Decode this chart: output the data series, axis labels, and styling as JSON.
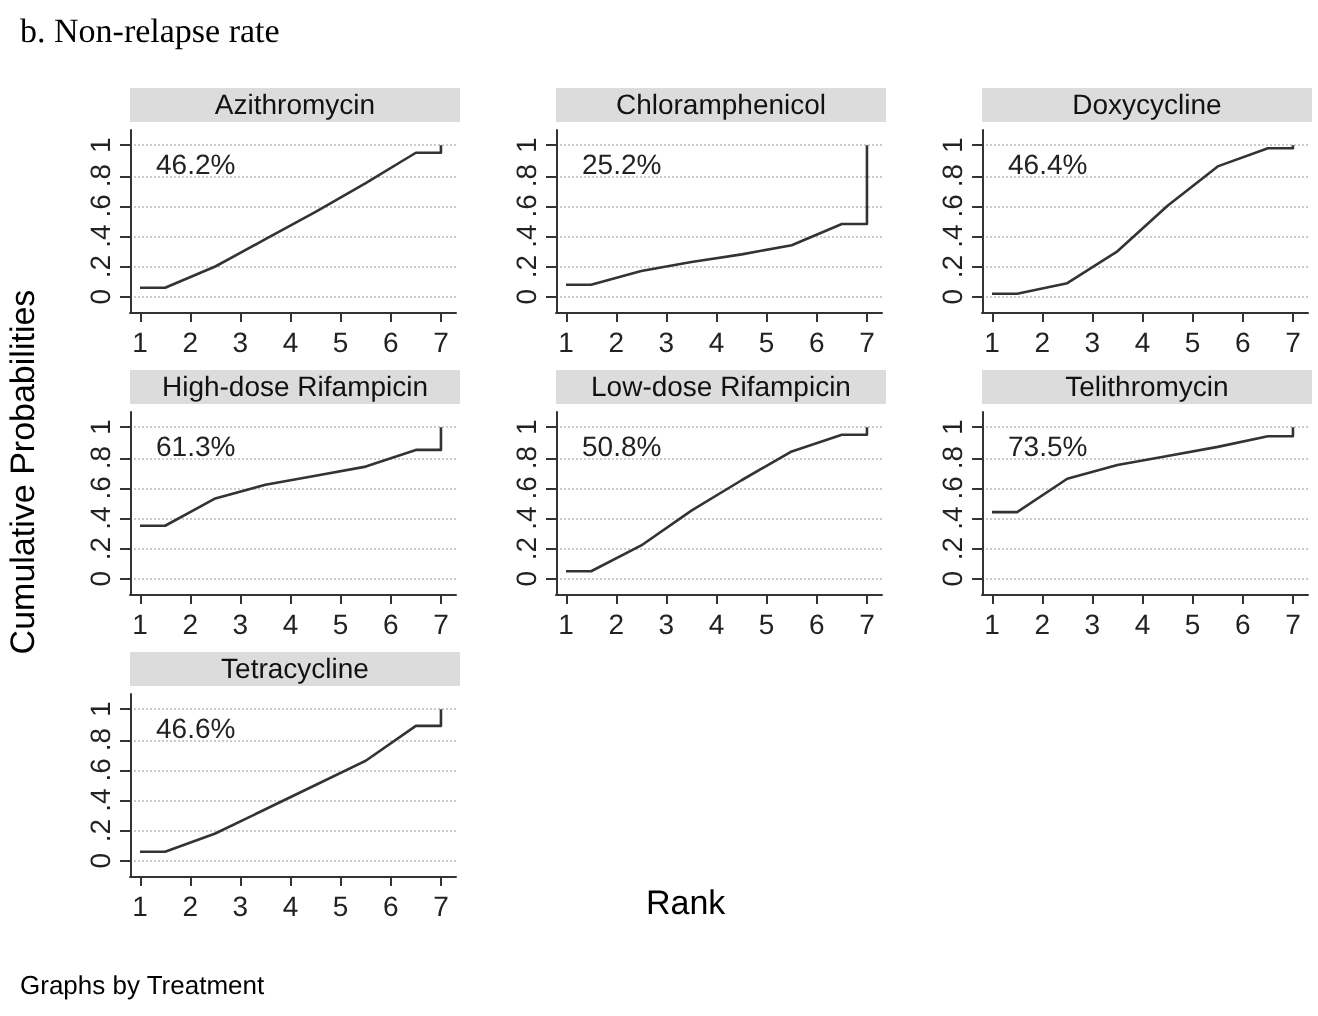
{
  "chart_data": [
    {
      "type": "line",
      "title": "Azithromycin",
      "annotations": [
        "46.2%"
      ],
      "x": [
        1,
        1.5,
        2.5,
        3.5,
        4.5,
        5.5,
        6.5,
        7,
        7
      ],
      "series": [
        {
          "color": "#333333",
          "values": [
            0.06,
            0.06,
            0.2,
            0.38,
            0.56,
            0.75,
            0.95,
            0.95,
            1
          ]
        }
      ],
      "xlim": [
        0.8,
        7.3
      ],
      "xticks": [
        1,
        2,
        3,
        4,
        5,
        6,
        7
      ],
      "ylim": [
        -0.1,
        1.1
      ],
      "yticks": [
        {
          "value": 0,
          "label": "0"
        },
        {
          "value": 0.2,
          "label": ".2"
        },
        {
          "value": 0.4,
          "label": ".4"
        },
        {
          "value": 0.6,
          "label": ".6"
        },
        {
          "value": 0.8,
          "label": ".8"
        },
        {
          "value": 1,
          "label": "1"
        }
      ],
      "grid": "y"
    },
    {
      "type": "line",
      "title": "Chloramphenicol",
      "annotations": [
        "25.2%"
      ],
      "x": [
        1,
        1.5,
        2.5,
        3.5,
        4.5,
        5.5,
        6.5,
        7,
        7
      ],
      "series": [
        {
          "color": "#333333",
          "values": [
            0.08,
            0.08,
            0.17,
            0.23,
            0.28,
            0.34,
            0.48,
            0.48,
            1
          ]
        }
      ],
      "xlim": [
        0.8,
        7.3
      ],
      "xticks": [
        1,
        2,
        3,
        4,
        5,
        6,
        7
      ],
      "ylim": [
        -0.1,
        1.1
      ],
      "yticks": [
        {
          "value": 0,
          "label": "0"
        },
        {
          "value": 0.2,
          "label": ".2"
        },
        {
          "value": 0.4,
          "label": ".4"
        },
        {
          "value": 0.6,
          "label": ".6"
        },
        {
          "value": 0.8,
          "label": ".8"
        },
        {
          "value": 1,
          "label": "1"
        }
      ],
      "grid": "y"
    },
    {
      "type": "line",
      "title": "Doxycycline",
      "annotations": [
        "46.4%"
      ],
      "x": [
        1,
        1.5,
        2.5,
        3.5,
        4.5,
        5.5,
        6.5,
        7,
        7
      ],
      "series": [
        {
          "color": "#333333",
          "values": [
            0.02,
            0.02,
            0.09,
            0.3,
            0.6,
            0.86,
            0.98,
            0.98,
            1
          ]
        }
      ],
      "xlim": [
        0.8,
        7.3
      ],
      "xticks": [
        1,
        2,
        3,
        4,
        5,
        6,
        7
      ],
      "ylim": [
        -0.1,
        1.1
      ],
      "yticks": [
        {
          "value": 0,
          "label": "0"
        },
        {
          "value": 0.2,
          "label": ".2"
        },
        {
          "value": 0.4,
          "label": ".4"
        },
        {
          "value": 0.6,
          "label": ".6"
        },
        {
          "value": 0.8,
          "label": ".8"
        },
        {
          "value": 1,
          "label": "1"
        }
      ],
      "grid": "y"
    },
    {
      "type": "line",
      "title": "High-dose Rifampicin",
      "annotations": [
        "61.3%"
      ],
      "x": [
        1,
        1.5,
        2.5,
        3.5,
        4.5,
        5.5,
        6.5,
        7,
        7
      ],
      "series": [
        {
          "color": "#333333",
          "values": [
            0.35,
            0.35,
            0.53,
            0.62,
            0.68,
            0.74,
            0.85,
            0.85,
            1
          ]
        }
      ],
      "xlim": [
        0.8,
        7.3
      ],
      "xticks": [
        1,
        2,
        3,
        4,
        5,
        6,
        7
      ],
      "ylim": [
        -0.1,
        1.1
      ],
      "yticks": [
        {
          "value": 0,
          "label": "0"
        },
        {
          "value": 0.2,
          "label": ".2"
        },
        {
          "value": 0.4,
          "label": ".4"
        },
        {
          "value": 0.6,
          "label": ".6"
        },
        {
          "value": 0.8,
          "label": ".8"
        },
        {
          "value": 1,
          "label": "1"
        }
      ],
      "grid": "y"
    },
    {
      "type": "line",
      "title": "Low-dose Rifampicin",
      "annotations": [
        "50.8%"
      ],
      "x": [
        1,
        1.5,
        2.5,
        3.5,
        4.5,
        5.5,
        6.5,
        7,
        7
      ],
      "series": [
        {
          "color": "#333333",
          "values": [
            0.05,
            0.05,
            0.22,
            0.45,
            0.65,
            0.84,
            0.95,
            0.95,
            1
          ]
        }
      ],
      "xlim": [
        0.8,
        7.3
      ],
      "xticks": [
        1,
        2,
        3,
        4,
        5,
        6,
        7
      ],
      "ylim": [
        -0.1,
        1.1
      ],
      "yticks": [
        {
          "value": 0,
          "label": "0"
        },
        {
          "value": 0.2,
          "label": ".2"
        },
        {
          "value": 0.4,
          "label": ".4"
        },
        {
          "value": 0.6,
          "label": ".6"
        },
        {
          "value": 0.8,
          "label": ".8"
        },
        {
          "value": 1,
          "label": "1"
        }
      ],
      "grid": "y"
    },
    {
      "type": "line",
      "title": "Telithromycin",
      "annotations": [
        "73.5%"
      ],
      "x": [
        1,
        1.5,
        2.5,
        3.5,
        4.5,
        5.5,
        6.5,
        7,
        7
      ],
      "series": [
        {
          "color": "#333333",
          "values": [
            0.44,
            0.44,
            0.66,
            0.75,
            0.81,
            0.87,
            0.94,
            0.94,
            1
          ]
        }
      ],
      "xlim": [
        0.8,
        7.3
      ],
      "xticks": [
        1,
        2,
        3,
        4,
        5,
        6,
        7
      ],
      "ylim": [
        -0.1,
        1.1
      ],
      "yticks": [
        {
          "value": 0,
          "label": "0"
        },
        {
          "value": 0.2,
          "label": ".2"
        },
        {
          "value": 0.4,
          "label": ".4"
        },
        {
          "value": 0.6,
          "label": ".6"
        },
        {
          "value": 0.8,
          "label": ".8"
        },
        {
          "value": 1,
          "label": "1"
        }
      ],
      "grid": "y"
    },
    {
      "type": "line",
      "title": "Tetracycline",
      "annotations": [
        "46.6%"
      ],
      "x": [
        1,
        1.5,
        2.5,
        3.5,
        4.5,
        5.5,
        6.5,
        7,
        7
      ],
      "series": [
        {
          "color": "#333333",
          "values": [
            0.06,
            0.06,
            0.18,
            0.34,
            0.5,
            0.66,
            0.89,
            0.89,
            1
          ]
        }
      ],
      "xlim": [
        0.8,
        7.3
      ],
      "xticks": [
        1,
        2,
        3,
        4,
        5,
        6,
        7
      ],
      "ylim": [
        -0.1,
        1.1
      ],
      "yticks": [
        {
          "value": 0,
          "label": "0"
        },
        {
          "value": 0.2,
          "label": ".2"
        },
        {
          "value": 0.4,
          "label": ".4"
        },
        {
          "value": 0.6,
          "label": ".6"
        },
        {
          "value": 0.8,
          "label": ".8"
        },
        {
          "value": 1,
          "label": "1"
        }
      ],
      "grid": "y"
    },
    {
      "type": "other",
      "title": "b. Non-relapse rate",
      "xlabel": "Rank",
      "ylabel": "Cumulative Probabilities",
      "annotations": [
        "Graphs by Treatment"
      ]
    }
  ]
}
